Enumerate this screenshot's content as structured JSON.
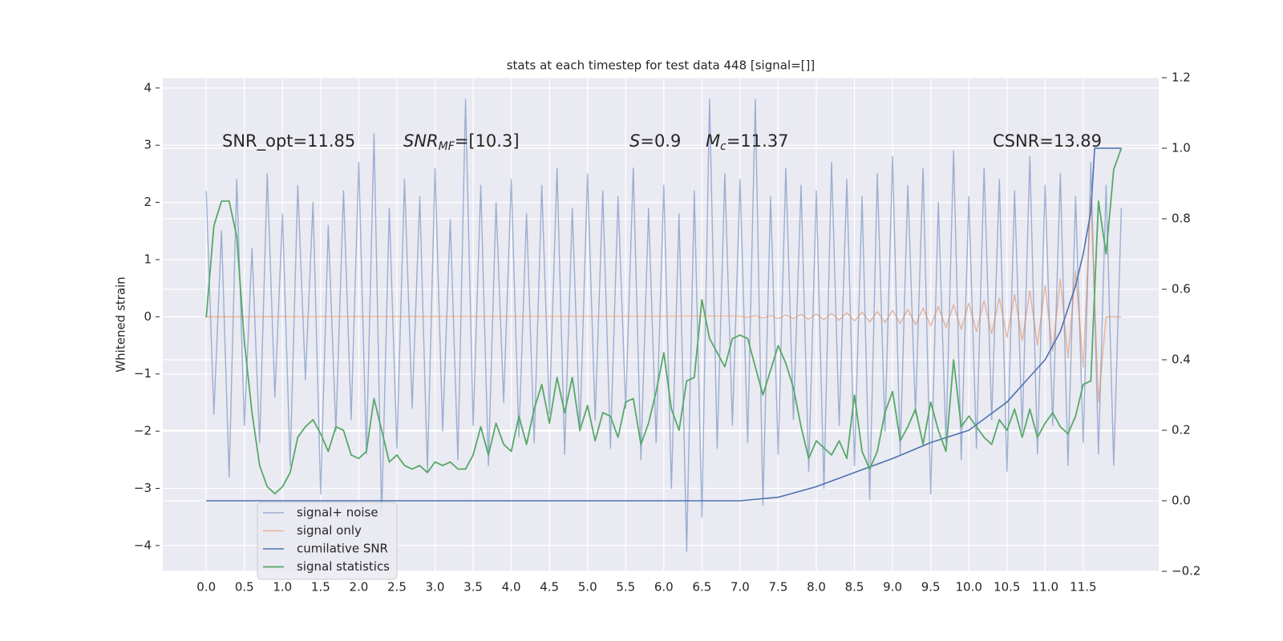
{
  "chart_data": {
    "type": "line",
    "title": "stats at each timestep for test data 448 [signal=[]]",
    "y_label": "Whitened strain",
    "annotations": [
      {
        "text": "SNR_opt=11.85"
      },
      {
        "main": "SNR",
        "sub": "MF",
        "rest": "=[10.3]"
      },
      {
        "main": "S",
        "rest": "=0.9"
      },
      {
        "main": "M",
        "sub": "c",
        "rest": "=11.37"
      },
      {
        "text": "CSNR=13.89"
      }
    ],
    "legend": "lower left",
    "grid": true,
    "xlim": [
      -0.57,
      12.49
    ],
    "ylim": [
      -4.45,
      4.18
    ],
    "y2lim": [
      -0.2,
      1.2
    ],
    "xticks": [
      {
        "value": 0,
        "label": "0.0"
      },
      0.5,
      {
        "value": 1,
        "label": "1.0"
      },
      1.5,
      {
        "value": 2,
        "label": "2.0"
      },
      2.5,
      {
        "value": 3,
        "label": "3.0"
      },
      3.5,
      {
        "value": 4,
        "label": "4.0"
      },
      4.5,
      {
        "value": 5,
        "label": "5.0"
      },
      5.5,
      {
        "value": 6,
        "label": "6.0"
      },
      6.5,
      {
        "value": 7,
        "label": "7.0"
      },
      7.5,
      {
        "value": 8,
        "label": "8.0"
      },
      8.5,
      {
        "value": 9,
        "label": "9.0"
      },
      9.5,
      {
        "value": 10,
        "label": "10.0"
      },
      10.5,
      {
        "value": 11,
        "label": "11.0"
      },
      11.5
    ],
    "yticks": [
      {
        "value": -4,
        "label": "−4"
      },
      {
        "value": -3,
        "label": "−3"
      },
      {
        "value": -2,
        "label": "−2"
      },
      {
        "value": -1,
        "label": "−1"
      },
      0,
      1,
      2,
      3,
      4
    ],
    "y2ticks": [
      {
        "value": -0.2,
        "label": "−0.2"
      },
      {
        "value": 0,
        "label": "0.0"
      },
      0.2,
      0.4,
      0.6,
      0.8,
      {
        "value": 1,
        "label": "1.0"
      },
      1.2
    ],
    "x": [
      0,
      0.1,
      0.2,
      0.3,
      0.4,
      0.5,
      0.6,
      0.7,
      0.8,
      0.9,
      1,
      1.1,
      1.2,
      1.3,
      1.4,
      1.5,
      1.6,
      1.7,
      1.8,
      1.9,
      2,
      2.1,
      2.2,
      2.3,
      2.4,
      2.5,
      2.6,
      2.7,
      2.8,
      2.9,
      3,
      3.1,
      3.2,
      3.3,
      3.4,
      3.5,
      3.6,
      3.7,
      3.8,
      3.9,
      4,
      4.1,
      4.2,
      4.3,
      4.4,
      4.5,
      4.6,
      4.7,
      4.8,
      4.9,
      5,
      5.1,
      5.2,
      5.3,
      5.4,
      5.5,
      5.6,
      5.7,
      5.8,
      5.9,
      6,
      6.1,
      6.2,
      6.3,
      6.4,
      6.5,
      6.6,
      6.7,
      6.8,
      6.9,
      7,
      7.1,
      7.2,
      7.3,
      7.4,
      7.5,
      7.6,
      7.7,
      7.8,
      7.9,
      8,
      8.1,
      8.2,
      8.3,
      8.4,
      8.5,
      8.6,
      8.7,
      8.8,
      8.9,
      9,
      9.1,
      9.2,
      9.3,
      9.4,
      9.5,
      9.6,
      9.7,
      9.8,
      9.9,
      10,
      10.1,
      10.2,
      10.3,
      10.4,
      10.5,
      10.6,
      10.7,
      10.8,
      10.9,
      11,
      11.1,
      11.2,
      11.3,
      11.4,
      11.5,
      11.6,
      11.7,
      11.8,
      11.9,
      12
    ],
    "series": [
      {
        "name": "signal+ noise",
        "color": "#4c72b0",
        "values": [
          2.2,
          -1.7,
          1.5,
          -2.8,
          2.4,
          -1.9,
          1.2,
          -2.2,
          2.5,
          -1.4,
          1.8,
          -2.6,
          2.3,
          -1.1,
          2.0,
          -3.1,
          1.6,
          -2.0,
          2.2,
          -1.8,
          2.7,
          -2.4,
          3.2,
          -3.5,
          1.9,
          -2.3,
          2.4,
          -1.6,
          2.1,
          -2.7,
          2.6,
          -2.0,
          1.7,
          -2.5,
          3.8,
          -1.9,
          2.3,
          -2.6,
          2.0,
          -1.5,
          2.4,
          -2.1,
          1.8,
          -2.2,
          2.3,
          -1.7,
          2.6,
          -2.4,
          1.9,
          -2.0,
          2.5,
          -1.8,
          2.2,
          -2.3,
          2.1,
          -1.6,
          2.6,
          -2.5,
          1.9,
          -2.2,
          2.3,
          -3.0,
          1.8,
          -4.1,
          2.2,
          -3.5,
          3.8,
          -2.3,
          2.5,
          -1.9,
          2.4,
          -2.2,
          3.8,
          -3.3,
          2.1,
          -2.4,
          2.6,
          -1.8,
          2.3,
          -2.7,
          2.2,
          -3.0,
          2.7,
          -1.9,
          2.4,
          -2.6,
          2.1,
          -3.2,
          2.5,
          -2.0,
          2.8,
          -2.4,
          2.3,
          -1.7,
          2.6,
          -3.1,
          2.0,
          -2.2,
          2.9,
          -2.5,
          2.1,
          -2.3,
          2.6,
          -1.8,
          2.4,
          -2.7,
          2.2,
          -2.0,
          2.8,
          -2.4,
          2.3,
          -1.9,
          2.5,
          -2.6,
          2.1,
          -2.2,
          2.7,
          -2.4,
          2.3,
          -2.6,
          1.9
        ]
      },
      {
        "name": "signal only",
        "color": "#dd8452",
        "x": [
          0,
          7,
          7.1,
          7.2,
          7.3,
          7.4,
          7.5,
          7.6,
          7.7,
          7.8,
          7.9,
          8,
          8.1,
          8.2,
          8.3,
          8.4,
          8.5,
          8.6,
          8.7,
          8.8,
          8.9,
          9,
          9.1,
          9.2,
          9.3,
          9.4,
          9.5,
          9.6,
          9.7,
          9.8,
          9.9,
          10,
          10.1,
          10.2,
          10.3,
          10.4,
          10.5,
          10.6,
          10.7,
          10.8,
          10.9,
          11,
          11.1,
          11.2,
          11.3,
          11.4,
          11.5,
          11.6,
          11.7,
          11.8,
          11.9,
          12
        ],
        "values": [
          0,
          0.01,
          -0.01,
          0.02,
          -0.02,
          0.02,
          -0.03,
          0.03,
          -0.03,
          0.04,
          -0.04,
          0.05,
          -0.05,
          0.06,
          -0.06,
          0.07,
          -0.07,
          0.08,
          -0.09,
          0.09,
          -0.1,
          0.11,
          -0.12,
          0.13,
          -0.14,
          0.15,
          -0.16,
          0.18,
          -0.19,
          0.21,
          -0.22,
          0.24,
          -0.26,
          0.28,
          -0.3,
          0.33,
          -0.36,
          0.39,
          -0.42,
          0.46,
          -0.5,
          0.55,
          -0.6,
          0.66,
          -0.72,
          0.8,
          -0.88,
          2.1,
          -1.5,
          0,
          0,
          0
        ]
      },
      {
        "name": "cumilative SNR",
        "color": "#4c72b0",
        "axis": "y2",
        "x": [
          0,
          7,
          7.5,
          8,
          8.5,
          9,
          9.5,
          10,
          10.5,
          11,
          11.2,
          11.4,
          11.5,
          11.6,
          11.65,
          11.7,
          12
        ],
        "values": [
          0,
          0,
          0.01,
          0.04,
          0.08,
          0.12,
          0.165,
          0.2,
          0.28,
          0.4,
          0.48,
          0.61,
          0.7,
          0.82,
          1,
          1,
          1
        ]
      },
      {
        "name": "signal statistics",
        "color": "#55a868",
        "axis": "y2",
        "values": [
          0.52,
          0.78,
          0.85,
          0.85,
          0.75,
          0.45,
          0.25,
          0.1,
          0.04,
          0.02,
          0.04,
          0.08,
          0.18,
          0.21,
          0.23,
          0.19,
          0.14,
          0.21,
          0.2,
          0.13,
          0.12,
          0.14,
          0.29,
          0.2,
          0.11,
          0.13,
          0.1,
          0.09,
          0.1,
          0.08,
          0.11,
          0.1,
          0.11,
          0.09,
          0.09,
          0.13,
          0.21,
          0.13,
          0.22,
          0.16,
          0.14,
          0.24,
          0.16,
          0.26,
          0.33,
          0.22,
          0.35,
          0.25,
          0.35,
          0.2,
          0.27,
          0.17,
          0.25,
          0.24,
          0.18,
          0.28,
          0.29,
          0.16,
          0.22,
          0.31,
          0.42,
          0.26,
          0.2,
          0.34,
          0.35,
          0.57,
          0.46,
          0.42,
          0.38,
          0.46,
          0.47,
          0.46,
          0.38,
          0.3,
          0.37,
          0.44,
          0.39,
          0.32,
          0.21,
          0.12,
          0.17,
          0.15,
          0.13,
          0.17,
          0.12,
          0.3,
          0.14,
          0.09,
          0.14,
          0.25,
          0.31,
          0.17,
          0.21,
          0.26,
          0.16,
          0.28,
          0.2,
          0.14,
          0.4,
          0.21,
          0.24,
          0.21,
          0.18,
          0.16,
          0.23,
          0.2,
          0.26,
          0.18,
          0.26,
          0.18,
          0.22,
          0.25,
          0.21,
          0.19,
          0.24,
          0.33,
          0.34,
          0.85,
          0.7,
          0.94,
          1
        ]
      }
    ]
  }
}
